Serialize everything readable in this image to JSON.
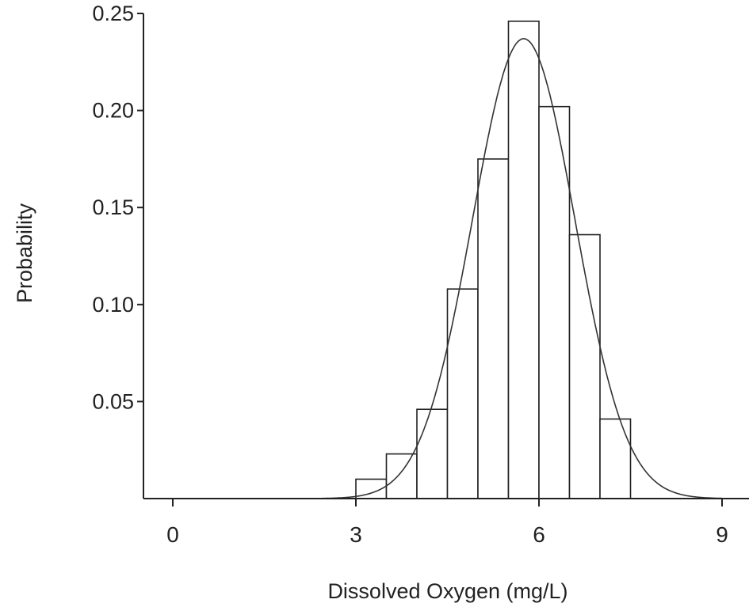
{
  "chart_data": {
    "type": "bar",
    "xlabel": "Dissolved Oxygen (mg/L)",
    "ylabel": "Probability",
    "xlim": [
      -0.5,
      9.4
    ],
    "ylim": [
      0,
      0.25
    ],
    "xticks": [
      0,
      3,
      6,
      9
    ],
    "xtick_labels": [
      "0",
      "3",
      "6",
      "9"
    ],
    "yticks": [
      0.05,
      0.1,
      0.15,
      0.2,
      0.25
    ],
    "ytick_labels": [
      "0.05",
      "0.10",
      "0.15",
      "0.20",
      "0.25"
    ],
    "bin_width": 0.5,
    "bins": [
      {
        "x0": 3.0,
        "x1": 3.5,
        "value": 0.01
      },
      {
        "x0": 3.5,
        "x1": 4.0,
        "value": 0.023
      },
      {
        "x0": 4.0,
        "x1": 4.5,
        "value": 0.046
      },
      {
        "x0": 4.5,
        "x1": 5.0,
        "value": 0.108
      },
      {
        "x0": 5.0,
        "x1": 5.5,
        "value": 0.175
      },
      {
        "x0": 5.5,
        "x1": 6.0,
        "value": 0.246
      },
      {
        "x0": 6.0,
        "x1": 6.5,
        "value": 0.202
      },
      {
        "x0": 6.5,
        "x1": 7.0,
        "value": 0.136
      },
      {
        "x0": 7.0,
        "x1": 7.5,
        "value": 0.041
      }
    ],
    "fit_curve": {
      "type": "normal",
      "mean": 5.75,
      "sd": 0.84,
      "peak": 0.237
    },
    "grid": false,
    "legend": "none"
  },
  "colors": {
    "axis": "#222222",
    "bar_stroke": "#222222",
    "bar_fill": "#ffffff",
    "curve": "#333333"
  }
}
